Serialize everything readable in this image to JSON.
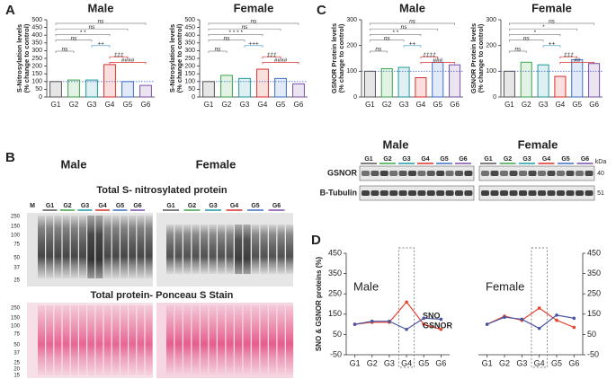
{
  "panel_labels": [
    "A",
    "B",
    "C",
    "D"
  ],
  "chart_data": [
    {
      "type": "bar",
      "title": "Male",
      "ylabel": [
        "S-Nitrosylation levels",
        "(% change to control)"
      ],
      "categories": [
        "G1",
        "G2",
        "G3",
        "G4",
        "G5",
        "G6"
      ],
      "values": [
        100,
        110,
        110,
        210,
        100,
        75
      ],
      "colors": [
        "#555555",
        "#3aa54a",
        "#1f9aa0",
        "#d9302b",
        "#3d6ec9",
        "#7b4fa8"
      ],
      "ylim": [
        0,
        500
      ],
      "yticks": [
        0,
        50,
        100,
        150,
        200,
        250,
        300,
        350,
        400,
        450,
        500
      ],
      "hline": 100,
      "annotations": [
        {
          "text": "ns",
          "from": "G1",
          "to": "G6",
          "color": "#888888"
        },
        {
          "text": "ns",
          "from": "G1",
          "to": "G5",
          "color": "#888888"
        },
        {
          "text": "* *",
          "from": "G1",
          "to": "G4",
          "color": "#888888"
        },
        {
          "text": "ns",
          "from": "G1",
          "to": "G3",
          "color": "#888888"
        },
        {
          "text": "++",
          "from": "G3",
          "to": "G4",
          "color": "#3a8fc9"
        },
        {
          "text": "ns",
          "from": "G1",
          "to": "G2",
          "color": "#888888"
        },
        {
          "text": "‡‡‡",
          "from": "G4",
          "to": "G5",
          "color": "#d9302b"
        },
        {
          "text": "####",
          "from": "G4",
          "to": "G6",
          "color": "#d9302b"
        }
      ]
    },
    {
      "type": "bar",
      "title": "Female",
      "ylabel": [
        "S-Nitrosylation levels",
        "(% change to control)"
      ],
      "categories": [
        "G1",
        "G2",
        "G3",
        "G4",
        "G5",
        "G6"
      ],
      "values": [
        100,
        140,
        120,
        180,
        120,
        85
      ],
      "colors": [
        "#555555",
        "#3aa54a",
        "#1f9aa0",
        "#d9302b",
        "#3d6ec9",
        "#7b4fa8"
      ],
      "ylim": [
        0,
        500
      ],
      "yticks": [
        0,
        50,
        100,
        150,
        200,
        250,
        300,
        350,
        400,
        450,
        500
      ],
      "hline": 100,
      "annotations": [
        {
          "text": "ns",
          "from": "G1",
          "to": "G6",
          "color": "#888888"
        },
        {
          "text": "ns",
          "from": "G1",
          "to": "G5",
          "color": "#888888"
        },
        {
          "text": "* * * *",
          "from": "G1",
          "to": "G4",
          "color": "#888888"
        },
        {
          "text": "ns",
          "from": "G1",
          "to": "G3",
          "color": "#888888"
        },
        {
          "text": "+++",
          "from": "G3",
          "to": "G4",
          "color": "#3a8fc9"
        },
        {
          "text": "ns",
          "from": "G1",
          "to": "G2",
          "color": "#888888"
        },
        {
          "text": "‡‡‡",
          "from": "G4",
          "to": "G5",
          "color": "#d9302b"
        },
        {
          "text": "####",
          "from": "G4",
          "to": "G6",
          "color": "#d9302b"
        }
      ]
    },
    {
      "type": "bar",
      "title": "Male",
      "ylabel": [
        "GSNOR Protein levels",
        "(% change to control)"
      ],
      "categories": [
        "G1",
        "G2",
        "G3",
        "G4",
        "G5",
        "G6"
      ],
      "values": [
        100,
        110,
        115,
        75,
        135,
        125
      ],
      "colors": [
        "#555555",
        "#3aa54a",
        "#1f9aa0",
        "#d9302b",
        "#3d6ec9",
        "#7b4fa8"
      ],
      "ylim": [
        0,
        300
      ],
      "yticks": [
        0,
        100,
        200,
        300
      ],
      "hline": 100,
      "annotations": [
        {
          "text": "ns",
          "from": "G1",
          "to": "G6",
          "color": "#888888"
        },
        {
          "text": "ns",
          "from": "G1",
          "to": "G5",
          "color": "#888888"
        },
        {
          "text": "* *",
          "from": "G1",
          "to": "G4",
          "color": "#888888"
        },
        {
          "text": "ns",
          "from": "G1",
          "to": "G3",
          "color": "#888888"
        },
        {
          "text": "++",
          "from": "G3",
          "to": "G4",
          "color": "#3a8fc9"
        },
        {
          "text": "ns",
          "from": "G1",
          "to": "G2",
          "color": "#888888"
        },
        {
          "text": "‡‡‡‡",
          "from": "G4",
          "to": "G5",
          "color": "#d9302b"
        },
        {
          "text": "###",
          "from": "G4",
          "to": "G6",
          "color": "#d9302b"
        }
      ]
    },
    {
      "type": "bar",
      "title": "Female",
      "ylabel": [
        "GSNOR Protein levels",
        "(% change to control)"
      ],
      "categories": [
        "G1",
        "G2",
        "G3",
        "G4",
        "G5",
        "G6"
      ],
      "values": [
        100,
        135,
        125,
        80,
        145,
        130
      ],
      "colors": [
        "#555555",
        "#3aa54a",
        "#1f9aa0",
        "#d9302b",
        "#3d6ec9",
        "#7b4fa8"
      ],
      "ylim": [
        0,
        300
      ],
      "yticks": [
        0,
        100,
        200,
        300
      ],
      "hline": 100,
      "annotations": [
        {
          "text": "ns",
          "from": "G1",
          "to": "G6",
          "color": "#888888"
        },
        {
          "text": "*",
          "from": "G1",
          "to": "G5",
          "color": "#888888"
        },
        {
          "text": "*",
          "from": "G1",
          "to": "G4",
          "color": "#888888"
        },
        {
          "text": "ns",
          "from": "G1",
          "to": "G3",
          "color": "#888888"
        },
        {
          "text": "++",
          "from": "G3",
          "to": "G4",
          "color": "#3a8fc9"
        },
        {
          "text": "ns",
          "from": "G1",
          "to": "G2",
          "color": "#888888"
        },
        {
          "text": "‡‡‡",
          "from": "G4",
          "to": "G5",
          "color": "#d9302b"
        },
        {
          "text": "##",
          "from": "G4",
          "to": "G6",
          "color": "#d9302b"
        }
      ]
    },
    {
      "type": "line",
      "title": "Male",
      "ylabel": "SNO & GSNOR proteins (%)",
      "categories": [
        "G1",
        "G2",
        "G3",
        "G4",
        "G5",
        "G6"
      ],
      "ylim": [
        -50,
        450
      ],
      "yticks": [
        -50,
        50,
        150,
        250,
        350,
        450
      ],
      "highlight": "G4",
      "series": [
        {
          "name": "SNO",
          "color": "#e8432f",
          "values": [
            100,
            110,
            110,
            210,
            100,
            75
          ]
        },
        {
          "name": "GSNOR",
          "color": "#4a55a2",
          "values": [
            100,
            115,
            115,
            75,
            130,
            125
          ]
        }
      ]
    },
    {
      "type": "line",
      "title": "Female",
      "categories": [
        "G1",
        "G2",
        "G3",
        "G4",
        "G5",
        "G6"
      ],
      "y2lim": [
        -50,
        450
      ],
      "y2ticks": [
        -50,
        50,
        150,
        250,
        350,
        450
      ],
      "highlight": "G4",
      "series": [
        {
          "color": "#e8432f",
          "axis": "y2",
          "values": [
            100,
            140,
            120,
            180,
            120,
            85
          ]
        },
        {
          "color": "#4a55a2",
          "axis": "y2",
          "values": [
            100,
            135,
            125,
            80,
            145,
            130
          ]
        }
      ]
    }
  ],
  "blot_b": {
    "titles": [
      "Male",
      "Female"
    ],
    "top_title": "Total S- nitrosylated protein",
    "bottom_title": "Total  protein- Ponceau S Stain",
    "male_lanes": [
      "M",
      "G1",
      "G2",
      "G3",
      "G4",
      "G5",
      "G6"
    ],
    "female_lanes": [
      "G1",
      "G2",
      "G3",
      "G4",
      "G5",
      "G6"
    ],
    "top_markers": [
      250,
      150,
      100,
      75,
      50,
      37,
      25
    ],
    "bottom_markers": [
      250,
      150,
      100,
      75,
      50,
      37,
      25,
      20,
      15
    ]
  },
  "blot_c": {
    "titles": [
      "Male",
      "Female"
    ],
    "lanes": [
      "G1",
      "G2",
      "G3",
      "G4",
      "G5",
      "G6"
    ],
    "unit": "kDa",
    "rows": [
      {
        "label": "GSNOR",
        "kda": 40
      },
      {
        "label": "B-Tubulin",
        "kda": 51
      }
    ]
  }
}
